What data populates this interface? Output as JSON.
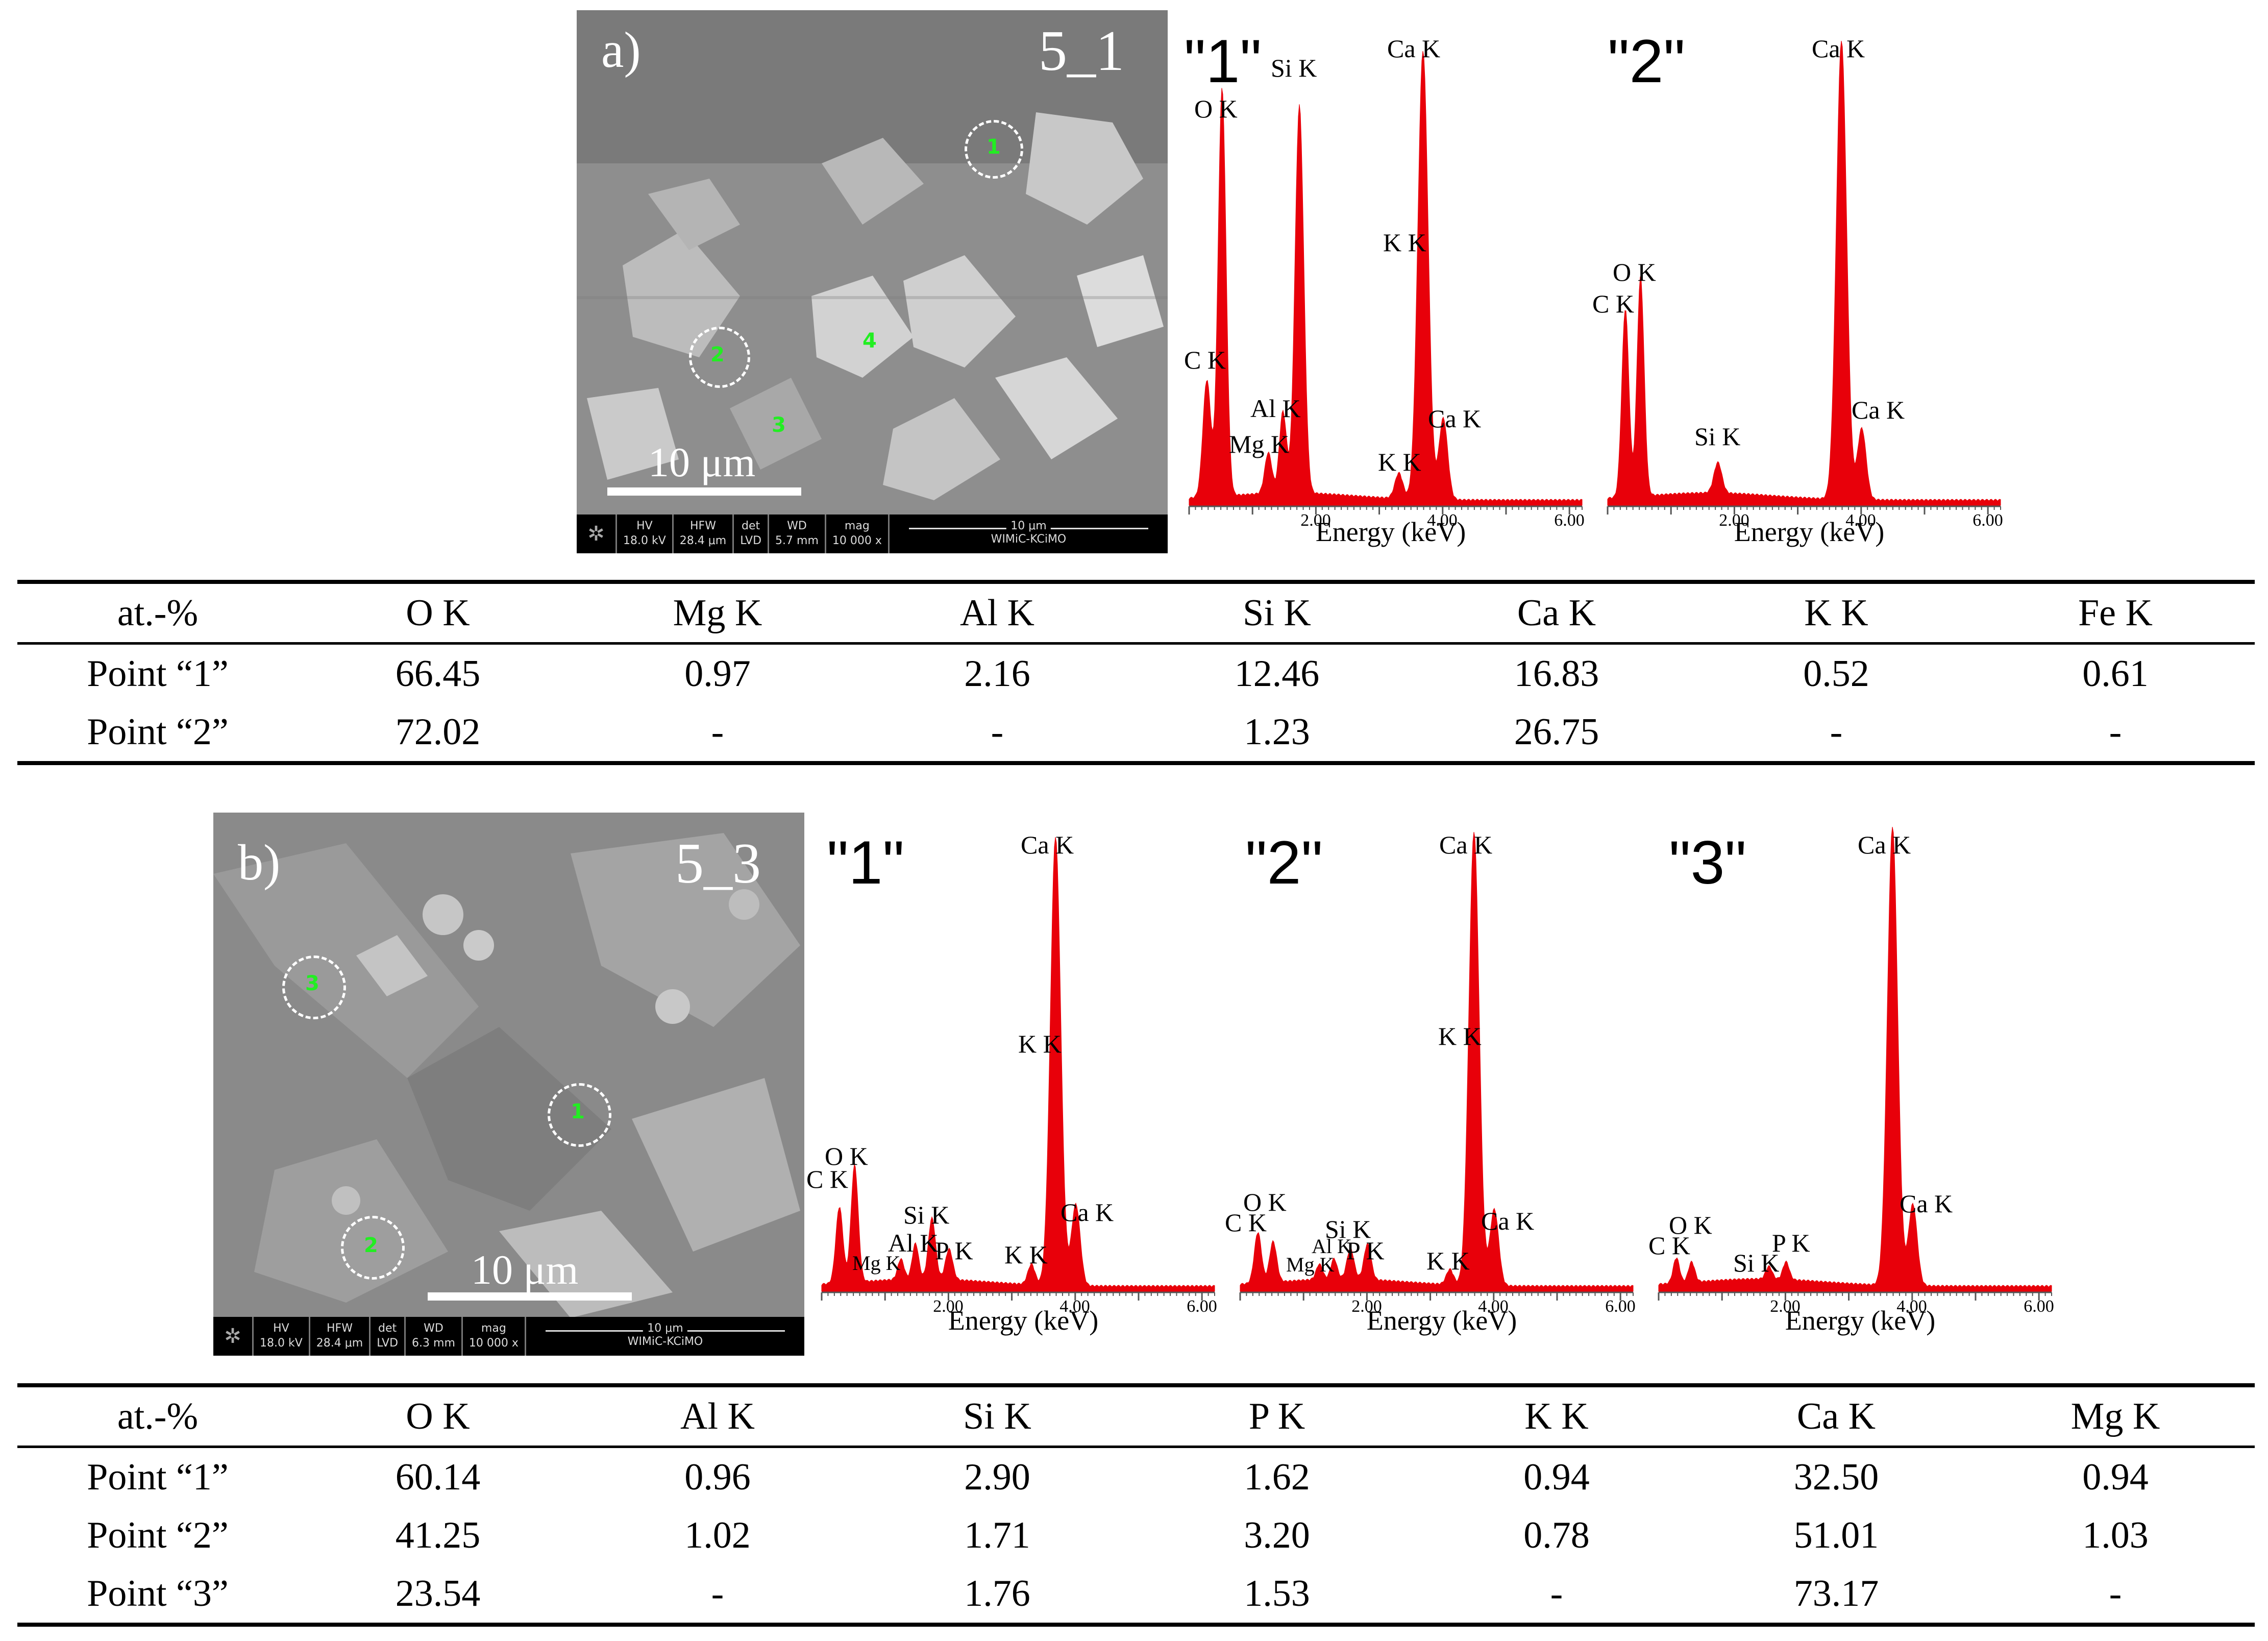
{
  "panel_a": {
    "label": "a)",
    "sample": "5_1",
    "scale_label": "10 μm",
    "databar": {
      "hv_label": "HV",
      "hv_value": "18.0 kV",
      "hfw_label": "HFW",
      "hfw_value": "28.4 μm",
      "det_label": "det",
      "det_value": "LVD",
      "wd_label": "WD",
      "wd_value": "5.7 mm",
      "mag_label": "mag",
      "mag_value": "10 000 x",
      "bar_scale": "10 μm",
      "lab": "WIMiC-KCiMO"
    },
    "points": [
      "1",
      "2",
      "3",
      "4"
    ],
    "spectra": [
      {
        "title": "\"1\"",
        "peaks": [
          "C K",
          "O K",
          "Mg K",
          "Al K",
          "Si K",
          "K K",
          "Ca K",
          "K K",
          "Ca K"
        ]
      },
      {
        "title": "\"2\"",
        "peaks": [
          "C K",
          "O K",
          "Si K",
          "Ca K",
          "Ca K"
        ]
      }
    ]
  },
  "panel_b": {
    "label": "b)",
    "sample": "5_3",
    "scale_label": "10 μm",
    "databar": {
      "hv_label": "HV",
      "hv_value": "18.0 kV",
      "hfw_label": "HFW",
      "hfw_value": "28.4 μm",
      "det_label": "det",
      "det_value": "LVD",
      "wd_label": "WD",
      "wd_value": "6.3 mm",
      "mag_label": "mag",
      "mag_value": "10 000 x",
      "bar_scale": "10 μm",
      "lab": "WIMiC-KCiMO"
    },
    "points": [
      "1",
      "2",
      "3"
    ],
    "spectra": [
      {
        "title": "\"1\"",
        "peaks": [
          "C K",
          "O K",
          "Mg K",
          "Al K",
          "Si K",
          "P K",
          "K K",
          "Ca K",
          "K K",
          "Ca K"
        ]
      },
      {
        "title": "\"2\"",
        "peaks": [
          "C K",
          "O K",
          "Mg K",
          "Al K",
          "Si K",
          "P K",
          "K K",
          "Ca K",
          "K K",
          "Ca K"
        ]
      },
      {
        "title": "\"3\"",
        "peaks": [
          "C K",
          "O K",
          "Si K",
          "P K",
          "Ca K",
          "Ca K"
        ]
      }
    ]
  },
  "spectrum_axis": {
    "xlabel": "Energy (keV)",
    "ticks": [
      "2.00",
      "4.00",
      "6.00"
    ],
    "tick_values": [
      2,
      4,
      6
    ],
    "xlim": [
      0,
      6.2
    ],
    "color": "#e8000a"
  },
  "table_a": {
    "columns": [
      "at.-%",
      "O K",
      "Mg K",
      "Al K",
      "Si K",
      "Ca K",
      "K K",
      "Fe K"
    ],
    "rows": [
      [
        "Point “1”",
        "66.45",
        "0.97",
        "2.16",
        "12.46",
        "16.83",
        "0.52",
        "0.61"
      ],
      [
        "Point “2”",
        "72.02",
        "-",
        "-",
        "1.23",
        "26.75",
        "-",
        "-"
      ]
    ]
  },
  "table_b": {
    "columns": [
      "at.-%",
      "O K",
      "Al K",
      "Si K",
      "P K",
      "K K",
      "Ca K",
      "Mg K"
    ],
    "rows": [
      [
        "Point “1”",
        "60.14",
        "0.96",
        "2.90",
        "1.62",
        "0.94",
        "32.50",
        "0.94"
      ],
      [
        "Point “2”",
        "41.25",
        "1.02",
        "1.71",
        "3.20",
        "0.78",
        "51.01",
        "1.03"
      ],
      [
        "Point “3”",
        "23.54",
        "-",
        "1.76",
        "1.53",
        "-",
        "73.17",
        "-"
      ]
    ]
  }
}
